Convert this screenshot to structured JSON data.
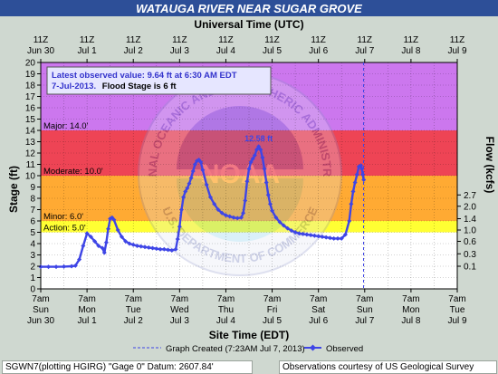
{
  "page": {
    "footer_left": "SGWN7(plotting HGIRG) \"Gage 0\" Datum: 2607.84'",
    "footer_right": "Observations courtesy of US Geological Survey"
  },
  "chart_data": {
    "type": "line",
    "title": "WATAUGA RIVER NEAR SUGAR GROVE",
    "top_axis_title": "Universal Time (UTC)",
    "xlabel": "Site Time (EDT)",
    "ylabel": "Stage (ft)",
    "y2label": "Flow (kcfs)",
    "ylim": [
      0,
      20
    ],
    "xlim_hours": [
      0,
      216
    ],
    "grid": true,
    "colors": {
      "major": "#cc77ee",
      "moderate": "#ee4455",
      "minor": "#ffaa33",
      "action": "#ffff33",
      "normal": "#ffffff",
      "series": "#3e45e6",
      "title_band": "#2d4f98"
    },
    "flood_categories": [
      {
        "label": "Major: 14.0'",
        "from": 14,
        "to": 20,
        "color": "#cc77ee"
      },
      {
        "label": "Moderate: 10.0'",
        "from": 10,
        "to": 14,
        "color": "#ee4455"
      },
      {
        "label": "Minor: 6.0'",
        "from": 6,
        "to": 10,
        "color": "#ffaa33"
      },
      {
        "label": "Action: 5.0'",
        "from": 5,
        "to": 6,
        "color": "#ffff33"
      }
    ],
    "top_ticks": [
      {
        "h": 0,
        "l1": "11Z",
        "l2": "Jun 30"
      },
      {
        "h": 24,
        "l1": "11Z",
        "l2": "Jul 1"
      },
      {
        "h": 48,
        "l1": "11Z",
        "l2": "Jul 2"
      },
      {
        "h": 72,
        "l1": "11Z",
        "l2": "Jul 3"
      },
      {
        "h": 96,
        "l1": "11Z",
        "l2": "Jul 4"
      },
      {
        "h": 120,
        "l1": "11Z",
        "l2": "Jul 5"
      },
      {
        "h": 144,
        "l1": "11Z",
        "l2": "Jul 6"
      },
      {
        "h": 168,
        "l1": "11Z",
        "l2": "Jul 7"
      },
      {
        "h": 192,
        "l1": "11Z",
        "l2": "Jul 8"
      },
      {
        "h": 216,
        "l1": "11Z",
        "l2": "Jul 9"
      }
    ],
    "bottom_ticks": [
      {
        "h": 0,
        "l1": "7am",
        "l2": "Sun",
        "l3": "Jun 30"
      },
      {
        "h": 24,
        "l1": "7am",
        "l2": "Mon",
        "l3": "Jul 1"
      },
      {
        "h": 48,
        "l1": "7am",
        "l2": "Tue",
        "l3": "Jul 2"
      },
      {
        "h": 72,
        "l1": "7am",
        "l2": "Wed",
        "l3": "Jul 3"
      },
      {
        "h": 96,
        "l1": "7am",
        "l2": "Thu",
        "l3": "Jul 4"
      },
      {
        "h": 120,
        "l1": "7am",
        "l2": "Fri",
        "l3": "Jul 5"
      },
      {
        "h": 144,
        "l1": "7am",
        "l2": "Sat",
        "l3": "Jul 6"
      },
      {
        "h": 168,
        "l1": "7am",
        "l2": "Sun",
        "l3": "Jul 7"
      },
      {
        "h": 192,
        "l1": "7am",
        "l2": "Mon",
        "l3": "Jul 8"
      },
      {
        "h": 216,
        "l1": "7am",
        "l2": "Tue",
        "l3": "Jul 9"
      }
    ],
    "y_ticks": [
      0,
      1,
      2,
      3,
      4,
      5,
      6,
      7,
      8,
      9,
      10,
      11,
      12,
      13,
      14,
      15,
      16,
      17,
      18,
      19,
      20
    ],
    "flow_ticks": [
      {
        "stage": 8.3,
        "label": "2.7"
      },
      {
        "stage": 7.3,
        "label": "2.0"
      },
      {
        "stage": 6.2,
        "label": "1.4"
      },
      {
        "stage": 5.2,
        "label": "1.0"
      },
      {
        "stage": 4.2,
        "label": "0.6"
      },
      {
        "stage": 3.1,
        "label": "0.3"
      },
      {
        "stage": 2.0,
        "label": "0.1"
      }
    ],
    "latest_box": {
      "line1": "Latest observed value: 9.64 ft at 6:30 AM EDT",
      "line2a": "7-Jul-2013.",
      "line2b": "Flood Stage is 6 ft"
    },
    "crest_label": "12.58 ft",
    "crest_point": {
      "h": 113,
      "stage": 12.58
    },
    "graph_created_hour": 167.4,
    "legend": {
      "created": "Graph Created (7:23AM Jul 7, 2013)",
      "observed": "Observed"
    },
    "watermark": {
      "top": "NATIONAL OCEANIC AND ATMOSPHERIC ADMINISTRATION",
      "center": "NOAA",
      "bottom": "U.S. DEPARTMENT OF COMMERCE"
    },
    "series": [
      {
        "name": "Observed",
        "x": [
          0,
          4,
          8,
          12,
          16,
          18,
          20,
          22,
          24,
          26,
          28,
          30,
          32,
          33,
          34,
          35,
          36,
          37,
          38,
          40,
          42,
          44,
          46,
          48,
          50,
          52,
          54,
          56,
          58,
          60,
          62,
          64,
          66,
          68,
          70,
          71,
          72,
          73,
          74,
          75,
          76,
          77,
          78,
          79,
          80,
          81,
          82,
          83,
          84,
          86,
          88,
          90,
          92,
          94,
          96,
          98,
          100,
          102,
          104,
          105,
          106,
          107,
          108,
          109,
          110,
          111,
          112,
          113,
          114,
          115,
          116,
          117,
          118,
          119,
          120,
          122,
          124,
          126,
          128,
          130,
          132,
          134,
          136,
          138,
          140,
          142,
          144,
          146,
          148,
          150,
          152,
          154,
          156,
          158,
          160,
          161,
          162,
          163,
          164,
          165,
          166,
          166.5,
          167,
          167.5
        ],
        "y": [
          1.95,
          1.95,
          1.95,
          1.97,
          2.0,
          2.05,
          2.6,
          3.8,
          4.9,
          4.6,
          4.2,
          3.8,
          3.6,
          3.2,
          4.1,
          5.3,
          6.2,
          6.3,
          6.1,
          5.2,
          4.6,
          4.2,
          4.0,
          3.9,
          3.8,
          3.75,
          3.7,
          3.65,
          3.6,
          3.55,
          3.5,
          3.5,
          3.45,
          3.4,
          3.5,
          4.4,
          5.5,
          7.0,
          8.1,
          8.6,
          8.9,
          9.3,
          9.8,
          10.4,
          11.0,
          11.3,
          11.4,
          11.2,
          10.5,
          9.2,
          8.1,
          7.5,
          7.0,
          6.7,
          6.5,
          6.4,
          6.3,
          6.25,
          6.3,
          6.7,
          7.8,
          9.5,
          10.6,
          11.2,
          11.5,
          11.8,
          12.3,
          12.58,
          12.3,
          11.6,
          10.6,
          9.4,
          8.3,
          7.5,
          6.9,
          6.3,
          5.9,
          5.6,
          5.35,
          5.15,
          5.0,
          4.9,
          4.85,
          4.8,
          4.75,
          4.7,
          4.65,
          4.6,
          4.55,
          4.5,
          4.45,
          4.45,
          4.45,
          4.8,
          6.0,
          7.5,
          8.6,
          9.4,
          10.1,
          10.8,
          10.9,
          10.6,
          10.1,
          9.64
        ]
      }
    ]
  }
}
